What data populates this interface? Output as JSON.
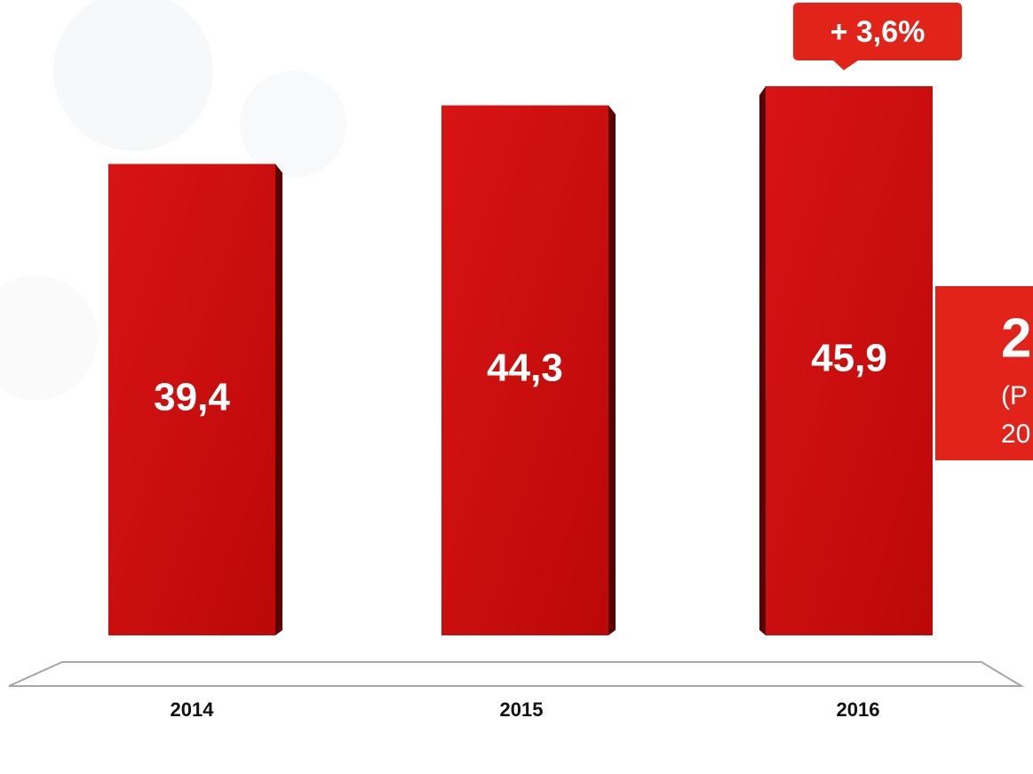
{
  "chart_data": {
    "type": "bar",
    "categories": [
      "2014",
      "2015",
      "2016"
    ],
    "values": [
      39.4,
      44.3,
      45.9
    ],
    "value_labels": [
      "39,4",
      "44,3",
      "45,9"
    ],
    "color": "#c40a0a",
    "annotation": "+ 3,6%",
    "side_panel": {
      "lines": [
        "2",
        "(P",
        "20"
      ]
    }
  }
}
